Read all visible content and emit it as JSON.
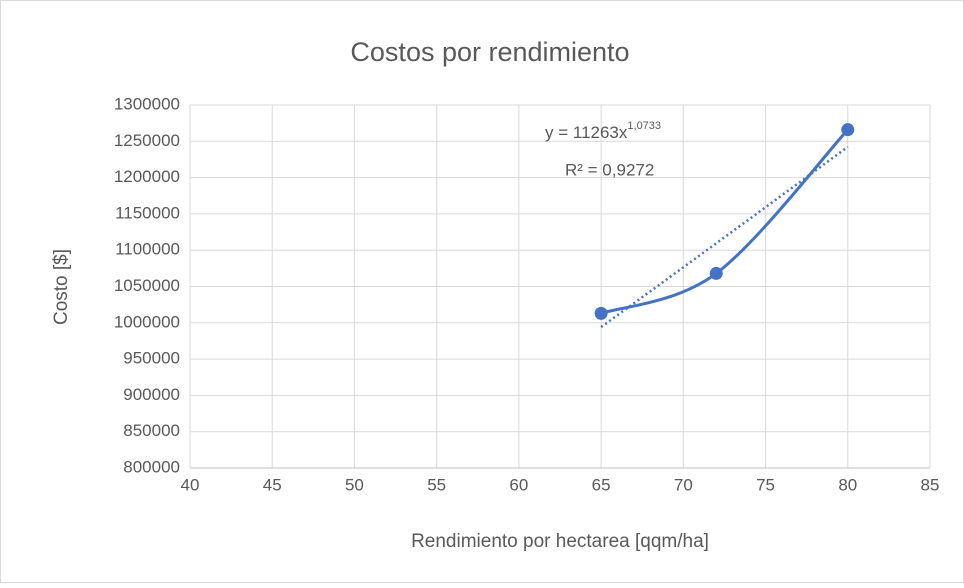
{
  "chart_data": {
    "type": "scatter",
    "title": "Costos por rendimiento",
    "x_label": "Rendimiento por hectarea [qqm/ha]",
    "y_label": "Costo [$]",
    "series": [
      {
        "color": "#4472c4",
        "x": [
          65,
          72,
          80
        ],
        "values": [
          1013000,
          1068000,
          1266000
        ]
      }
    ],
    "xlim": [
      40,
      85
    ],
    "xticks": [
      40,
      45,
      50,
      55,
      60,
      65,
      70,
      75,
      80,
      85
    ],
    "ylim": [
      800000,
      1300000
    ],
    "yticks": [
      800000,
      850000,
      900000,
      950000,
      1000000,
      1050000,
      1100000,
      1150000,
      1200000,
      1250000,
      1300000
    ],
    "grid": true,
    "trendline": {
      "type": "power",
      "coefficient": 11263,
      "exponent": 1.0733,
      "equation": "y = 11263x",
      "exponent_label": "1,0733",
      "r_squared_label": "R² = 0,9272"
    }
  }
}
